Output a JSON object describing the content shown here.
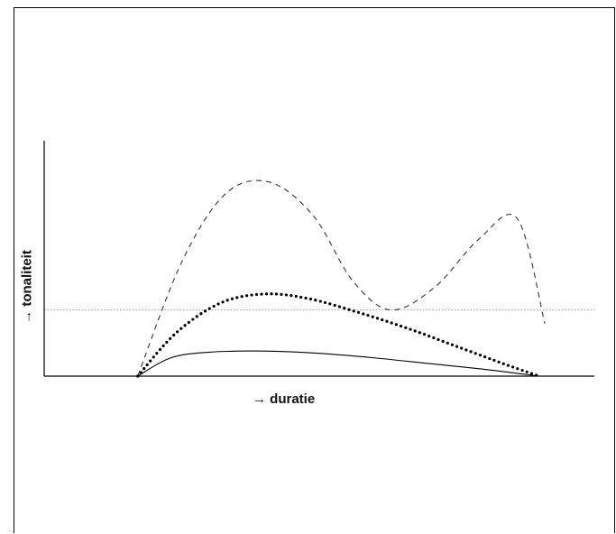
{
  "chart_data": {
    "type": "line",
    "xlabel": "→ duratie",
    "ylabel": "→ tonaliteit",
    "xlim": [
      0,
      10
    ],
    "ylim": [
      0,
      10
    ],
    "grid": false,
    "reference_lines": [
      {
        "axis": "y",
        "value": 2.9,
        "style": "dotted-thin",
        "color": "#999999"
      }
    ],
    "series": [
      {
        "style": "dashed",
        "color": "#333333",
        "x": [
          1.7,
          2.5,
          3.3,
          4.1,
          4.9,
          5.6,
          6.3,
          7.1,
          7.9,
          8.6,
          9.1
        ],
        "y": [
          0.0,
          5.0,
          8.0,
          8.5,
          7.0,
          4.2,
          2.9,
          3.9,
          6.0,
          6.9,
          2.3
        ]
      },
      {
        "style": "dotted-thick",
        "color": "#000000",
        "x": [
          1.7,
          2.4,
          3.2,
          4.0,
          4.8,
          5.7,
          6.6,
          7.5,
          8.4,
          9.0
        ],
        "y": [
          0.0,
          1.9,
          3.2,
          3.6,
          3.4,
          2.8,
          2.1,
          1.3,
          0.5,
          0.0
        ]
      },
      {
        "style": "solid",
        "color": "#000000",
        "x": [
          1.7,
          2.3,
          3.0,
          4.0,
          5.0,
          6.0,
          7.0,
          8.0,
          9.0
        ],
        "y": [
          0.0,
          0.8,
          1.05,
          1.1,
          1.0,
          0.8,
          0.55,
          0.3,
          0.0
        ]
      }
    ]
  }
}
